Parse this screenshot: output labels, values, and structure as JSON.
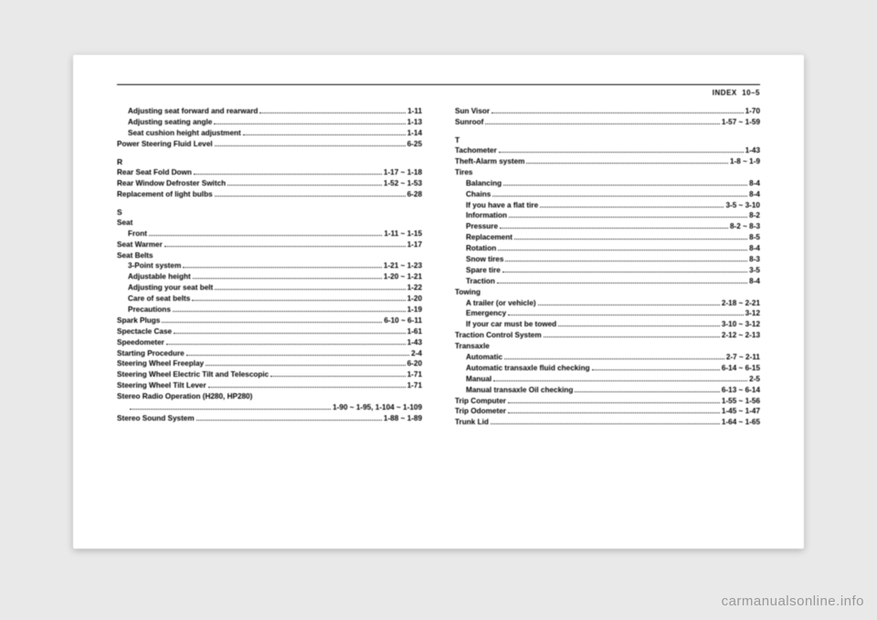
{
  "header": {
    "section": "INDEX",
    "page": "10–5"
  },
  "watermark": "carmanualsonline.info",
  "left": [
    {
      "indent": 1,
      "label": "Adjusting seat forward and rearward",
      "page": "1-11"
    },
    {
      "indent": 1,
      "label": "Adjusting seating angle",
      "page": "1-13"
    },
    {
      "indent": 1,
      "label": "Seat cushion height adjustment",
      "page": "1-14"
    },
    {
      "indent": 0,
      "label": "Power Steering Fluid Level",
      "page": "6-25"
    },
    {
      "letter": "R"
    },
    {
      "indent": 0,
      "label": "Rear Seat Fold Down",
      "page": "1-17 ~ 1-18"
    },
    {
      "indent": 0,
      "label": "Rear Window Defroster Switch",
      "page": "1-52 ~ 1-53"
    },
    {
      "indent": 0,
      "label": "Replacement of light bulbs",
      "page": "6-28"
    },
    {
      "letter": "S"
    },
    {
      "indent": 0,
      "label": "Seat",
      "page": "",
      "nopage": true
    },
    {
      "indent": 1,
      "label": "Front",
      "page": "1-11 ~ 1-15"
    },
    {
      "indent": 0,
      "label": "Seat Warmer",
      "page": "1-17"
    },
    {
      "indent": 0,
      "label": "Seat Belts",
      "page": "",
      "nopage": true
    },
    {
      "indent": 1,
      "label": "3-Point system",
      "page": "1-21 ~ 1-23"
    },
    {
      "indent": 1,
      "label": "Adjustable height",
      "page": "1-20 ~ 1-21"
    },
    {
      "indent": 1,
      "label": "Adjusting your seat belt",
      "page": "1-22"
    },
    {
      "indent": 1,
      "label": "Care of seat belts",
      "page": "1-20"
    },
    {
      "indent": 1,
      "label": "Precautions",
      "page": "1-19"
    },
    {
      "indent": 0,
      "label": "Spark Plugs",
      "page": "6-10 ~ 6-11"
    },
    {
      "indent": 0,
      "label": "Spectacle Case",
      "page": "1-61"
    },
    {
      "indent": 0,
      "label": "Speedometer",
      "page": "1-43"
    },
    {
      "indent": 0,
      "label": "Starting Procedure",
      "page": "2-4"
    },
    {
      "indent": 0,
      "label": "Steering Wheel Freeplay",
      "page": "6-20"
    },
    {
      "indent": 0,
      "label": "Steering Wheel Electric Tilt and Telescopic",
      "page": "1-71"
    },
    {
      "indent": 0,
      "label": "Steering Wheel Tilt Lever",
      "page": "1-71"
    },
    {
      "indent": 0,
      "label": "Stereo Radio Operation (H280, HP280)",
      "page": "",
      "nopage": true
    },
    {
      "indent": 1,
      "label": "",
      "page": "1-90 ~ 1-95, 1-104 ~ 1-109"
    },
    {
      "indent": 0,
      "label": "Stereo Sound System",
      "page": "1-88 ~ 1-89"
    }
  ],
  "right": [
    {
      "indent": 0,
      "label": "Sun Visor",
      "page": "1-70"
    },
    {
      "indent": 0,
      "label": "Sunroof",
      "page": "1-57 ~ 1-59"
    },
    {
      "letter": "T"
    },
    {
      "indent": 0,
      "label": "Tachometer",
      "page": "1-43"
    },
    {
      "indent": 0,
      "label": "Theft-Alarm system",
      "page": "1-8 ~ 1-9"
    },
    {
      "indent": 0,
      "label": "Tires",
      "page": "",
      "nopage": true
    },
    {
      "indent": 1,
      "label": "Balancing",
      "page": "8-4"
    },
    {
      "indent": 1,
      "label": "Chains",
      "page": "8-4"
    },
    {
      "indent": 1,
      "label": "If you have a flat tire",
      "page": "3-5 ~ 3-10"
    },
    {
      "indent": 1,
      "label": "Information",
      "page": "8-2"
    },
    {
      "indent": 1,
      "label": "Pressure",
      "page": "8-2 ~ 8-3"
    },
    {
      "indent": 1,
      "label": "Replacement",
      "page": "8-5"
    },
    {
      "indent": 1,
      "label": "Rotation",
      "page": "8-4"
    },
    {
      "indent": 1,
      "label": "Snow tires",
      "page": "8-3"
    },
    {
      "indent": 1,
      "label": "Spare tire",
      "page": "3-5"
    },
    {
      "indent": 1,
      "label": "Traction",
      "page": "8-4"
    },
    {
      "indent": 0,
      "label": "Towing",
      "page": "",
      "nopage": true
    },
    {
      "indent": 1,
      "label": "A trailer (or vehicle)",
      "page": "2-18 ~ 2-21"
    },
    {
      "indent": 1,
      "label": "Emergency",
      "page": "3-12"
    },
    {
      "indent": 1,
      "label": "If your car must be towed",
      "page": "3-10 ~ 3-12"
    },
    {
      "indent": 0,
      "label": "Traction Control System",
      "page": "2-12 ~ 2-13"
    },
    {
      "indent": 0,
      "label": "Transaxle",
      "page": "",
      "nopage": true
    },
    {
      "indent": 1,
      "label": "Automatic",
      "page": "2-7 ~ 2-11"
    },
    {
      "indent": 1,
      "label": "Automatic transaxle fluid checking",
      "page": "6-14 ~ 6-15"
    },
    {
      "indent": 1,
      "label": "Manual",
      "page": "2-5"
    },
    {
      "indent": 1,
      "label": "Manual transaxle Oil checking",
      "page": "6-13 ~ 6-14"
    },
    {
      "indent": 0,
      "label": "Trip Computer",
      "page": "1-55 ~ 1-56"
    },
    {
      "indent": 0,
      "label": "Trip Odometer",
      "page": "1-45 ~ 1-47"
    },
    {
      "indent": 0,
      "label": "Trunk Lid",
      "page": "1-64 ~ 1-65"
    }
  ]
}
